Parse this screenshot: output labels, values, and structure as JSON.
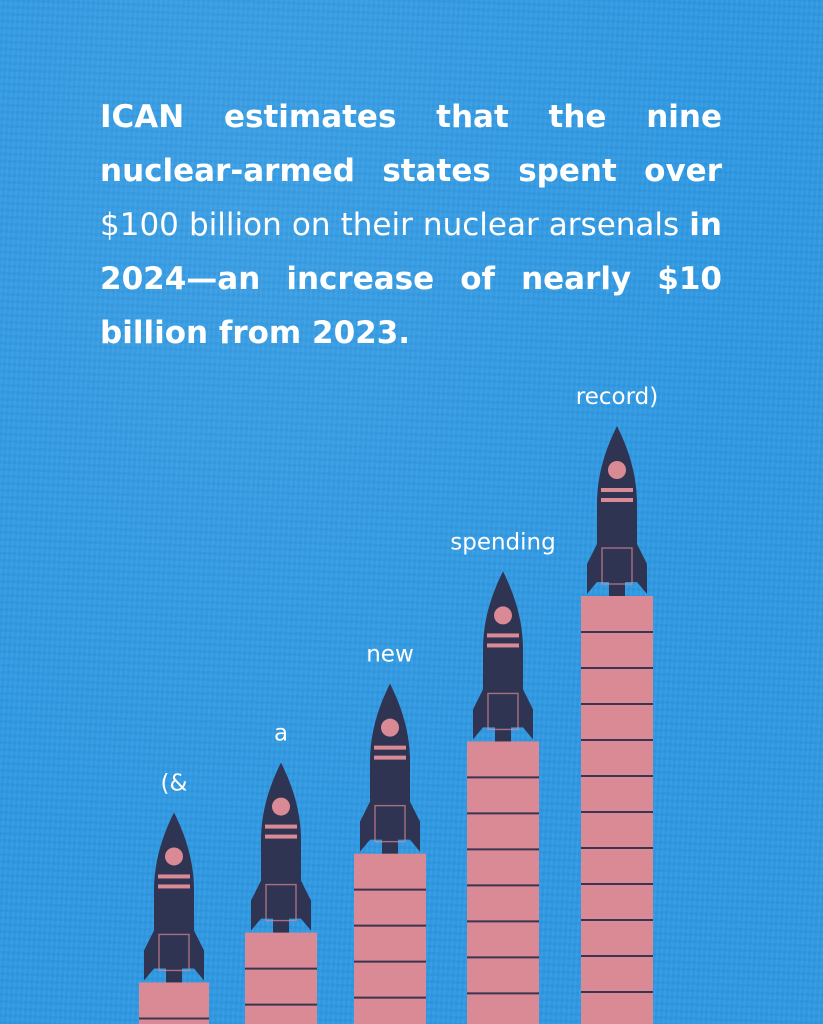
{
  "headline": {
    "p1": "ICAN estimates that the nine nuclear-armed states spent over",
    "p2": " $100 billion on their nuclear arsenals ",
    "p3": "in 2024—an increase of nearly $10 billion from 2023."
  },
  "colors": {
    "background": "#2f9ae4",
    "bar": "#d98a94",
    "bar_line": "#3a3550",
    "rocket": "#2f3452",
    "rocket_accent": "#d98a94",
    "text": "#ffffff"
  },
  "chart_data": {
    "type": "bar",
    "categories": [
      "(&",
      "a",
      "new",
      "spending",
      "record)"
    ],
    "values": [
      1,
      2.2,
      4.1,
      6.8,
      10.3
    ],
    "title": "",
    "xlabel": "",
    "ylabel": "",
    "ylim": [
      0,
      10.3
    ],
    "grid": false,
    "legend": "none"
  }
}
